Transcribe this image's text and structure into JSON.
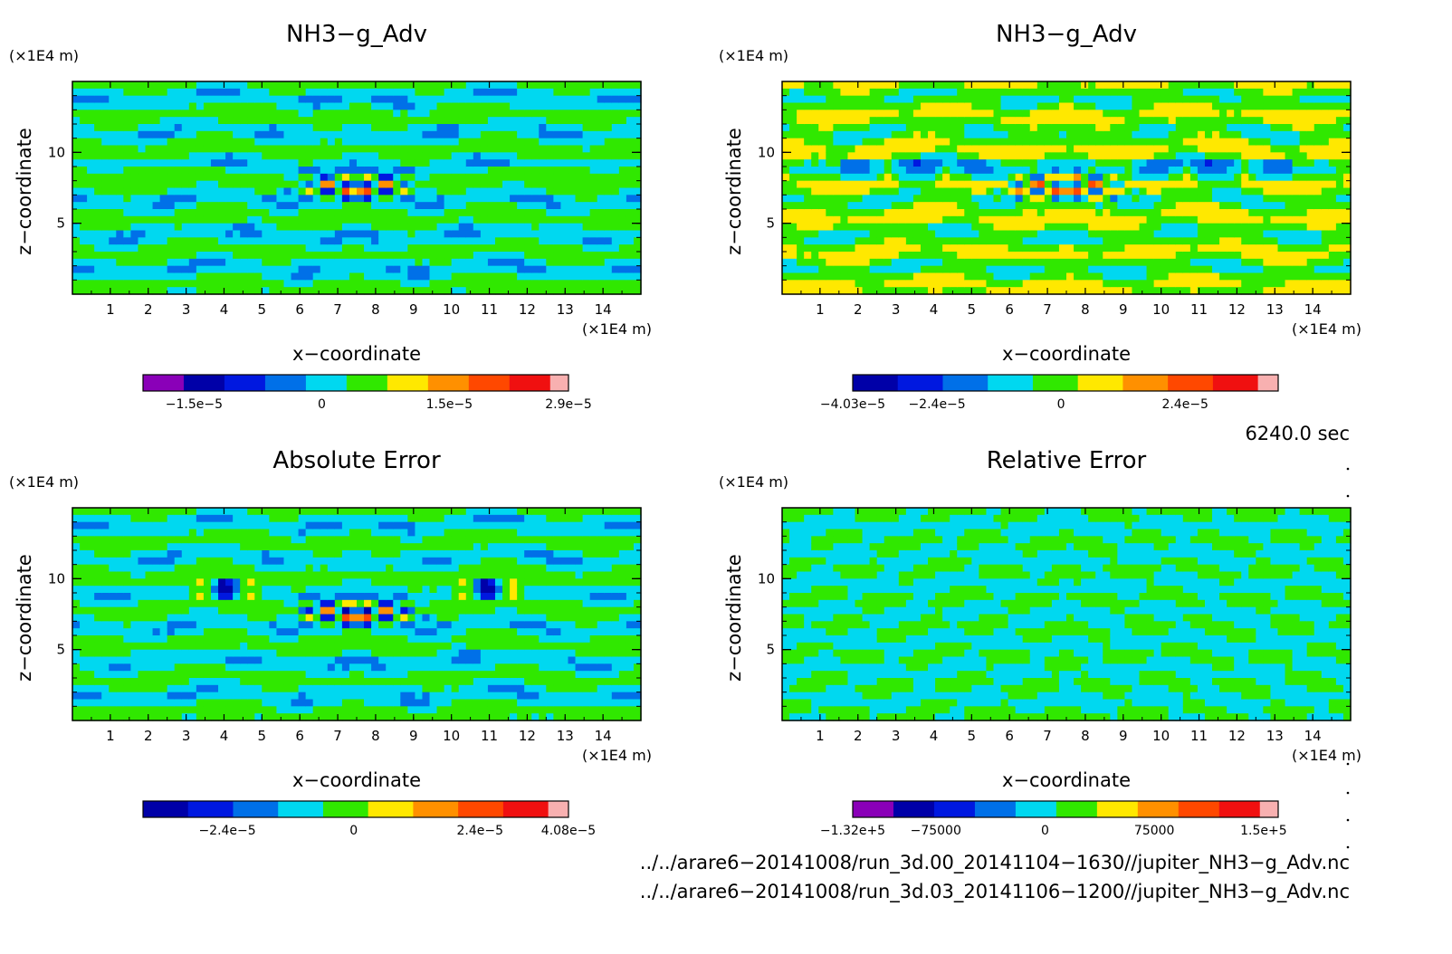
{
  "chart_data": [
    {
      "type": "heatmap",
      "title": "NH3−g_Adv",
      "xlabel": "x−coordinate",
      "ylabel": "z−coordinate",
      "x_unit": "(×1E4 m)",
      "y_unit": "(×1E4 m)",
      "xlim": [
        0,
        15
      ],
      "ylim": [
        0,
        15
      ],
      "x_ticks": [
        "1",
        "2",
        "3",
        "4",
        "5",
        "6",
        "7",
        "8",
        "9",
        "10",
        "11",
        "12",
        "13",
        "14"
      ],
      "y_ticks": [
        "5",
        "10"
      ],
      "colorbar": {
        "colors": [
          "#8a00b8",
          "#0000a8",
          "#0018e0",
          "#0070e8",
          "#00d8f0",
          "#30e800",
          "#ffe800",
          "#ff9000",
          "#ff4800",
          "#f01010",
          "#f8b0b0"
        ],
        "tick_labels": [
          "−1.5e−5",
          "0",
          "1.5e−5",
          "2.9e−5"
        ],
        "tick_values": [
          -1.5e-05,
          0,
          1.5e-05,
          2.9e-05
        ],
        "min": -2.1e-05,
        "max": 2.9e-05
      }
    },
    {
      "type": "heatmap",
      "title": "NH3−g_Adv",
      "xlabel": "x−coordinate",
      "ylabel": "z−coordinate",
      "x_unit": "(×1E4 m)",
      "y_unit": "(×1E4 m)",
      "xlim": [
        0,
        15
      ],
      "ylim": [
        0,
        15
      ],
      "x_ticks": [
        "1",
        "2",
        "3",
        "4",
        "5",
        "6",
        "7",
        "8",
        "9",
        "10",
        "11",
        "12",
        "13",
        "14"
      ],
      "y_ticks": [
        "5",
        "10"
      ],
      "colorbar": {
        "colors": [
          "#0000a8",
          "#0018e0",
          "#0070e8",
          "#00d8f0",
          "#30e800",
          "#ffe800",
          "#ff9000",
          "#ff4800",
          "#f01010",
          "#f8b0b0"
        ],
        "tick_labels": [
          "−4.03e−5",
          "−2.4e−5",
          "0",
          "2.4e−5"
        ],
        "tick_values": [
          -4.03e-05,
          -2.4e-05,
          0,
          2.4e-05
        ],
        "min": -4.03e-05,
        "max": 4.2e-05
      }
    },
    {
      "type": "heatmap",
      "title": "Absolute Error",
      "xlabel": "x−coordinate",
      "ylabel": "z−coordinate",
      "x_unit": "(×1E4 m)",
      "y_unit": "(×1E4 m)",
      "xlim": [
        0,
        15
      ],
      "ylim": [
        0,
        15
      ],
      "x_ticks": [
        "1",
        "2",
        "3",
        "4",
        "5",
        "6",
        "7",
        "8",
        "9",
        "10",
        "11",
        "12",
        "13",
        "14"
      ],
      "y_ticks": [
        "5",
        "10"
      ],
      "colorbar": {
        "colors": [
          "#0000a8",
          "#0018e0",
          "#0070e8",
          "#00d8f0",
          "#30e800",
          "#ffe800",
          "#ff9000",
          "#ff4800",
          "#f01010",
          "#f8b0b0"
        ],
        "tick_labels": [
          "−2.4e−5",
          "0",
          "2.4e−5",
          "4.08e−5"
        ],
        "tick_values": [
          -2.4e-05,
          0,
          2.4e-05,
          4.08e-05
        ],
        "min": -4e-05,
        "max": 4.08e-05
      }
    },
    {
      "type": "heatmap",
      "title": "Relative Error",
      "xlabel": "x−coordinate",
      "ylabel": "z−coordinate",
      "x_unit": "(×1E4 m)",
      "y_unit": "(×1E4 m)",
      "xlim": [
        0,
        15
      ],
      "ylim": [
        0,
        15
      ],
      "x_ticks": [
        "1",
        "2",
        "3",
        "4",
        "5",
        "6",
        "7",
        "8",
        "9",
        "10",
        "11",
        "12",
        "13",
        "14"
      ],
      "y_ticks": [
        "5",
        "10"
      ],
      "colorbar": {
        "colors": [
          "#8a00b8",
          "#0000a8",
          "#0018e0",
          "#0070e8",
          "#00d8f0",
          "#30e800",
          "#ffe800",
          "#ff9000",
          "#ff4800",
          "#f01010",
          "#f8b0b0"
        ],
        "tick_labels": [
          "−1.32e+5",
          "−75000",
          "0",
          "75000",
          "1.5e+5"
        ],
        "tick_values": [
          -132000,
          -75000,
          0,
          75000,
          150000
        ],
        "min": -132000,
        "max": 160000
      }
    }
  ],
  "info": {
    "time": "6240.0 sec",
    "file1": "../../arare6−20141008/run_3d.00_20141104−1630//jupiter_NH3−g_Adv.nc",
    "file2": "../../arare6−20141008/run_3d.03_20141106−1200//jupiter_NH3−g_Adv.nc"
  }
}
